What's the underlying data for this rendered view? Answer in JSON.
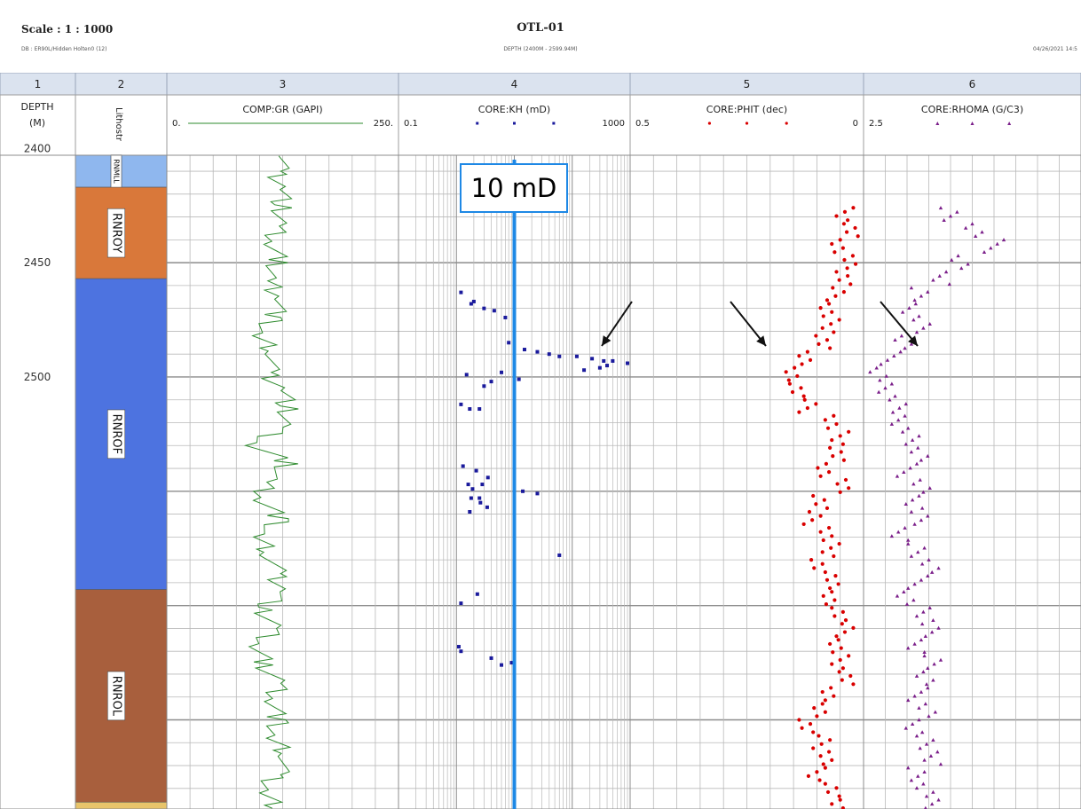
{
  "header": {
    "scale": "Scale : 1 : 1000",
    "database": "DB : ER90L/Hidden Holten0 (12)",
    "well": "OTL-01",
    "depth_range": "DEPTH (2400M - 2599.94M)",
    "date": "04/26/2021 14:5"
  },
  "tracks": [
    {
      "number": "1",
      "title": "DEPTH\n(M)"
    },
    {
      "number": "2",
      "title": "Lithostr"
    },
    {
      "number": "3",
      "title": "COMP:GR (GAPI)",
      "left": "0.",
      "right": "250."
    },
    {
      "number": "4",
      "title": "CORE:KH (mD)",
      "left": "0.1",
      "right": "1000"
    },
    {
      "number": "5",
      "title": "CORE:PHIT (dec)",
      "left": "0.5",
      "right": "0"
    },
    {
      "number": "6",
      "title": "CORE:RHOMA (G/C3)",
      "left": "2.5",
      "right": ""
    }
  ],
  "annotation": {
    "label": "10 mD",
    "value": 10,
    "color": "#1e88e5"
  },
  "colors": {
    "gr": "#2e8b2e",
    "kh": "#1a1a9c",
    "phit": "#d90000",
    "rhoma": "#7b1f8a",
    "grid": "#b9b9b9",
    "grid_major": "#8c8c8c"
  },
  "chart_data": {
    "type": "scatter",
    "ylabel": "DEPTH (M)",
    "depth_range": [
      2400,
      2599.94
    ],
    "depth_ticks": [
      2400,
      2450,
      2500
    ],
    "lithostratigraphy": [
      {
        "name": "RNMLL",
        "top": 2400,
        "base": 2417,
        "color": "#8fb7ee"
      },
      {
        "name": "RNROY",
        "top": 2417,
        "base": 2457,
        "color": "#d9783a"
      },
      {
        "name": "RNROF",
        "top": 2457,
        "base": 2593,
        "color": "#4d73e0"
      },
      {
        "name": "RNROL",
        "top": 2593,
        "base": 2686,
        "color": "#a85f3d"
      },
      {
        "name": "",
        "top": 2686,
        "base": 2700,
        "color": "#e8c46a"
      }
    ],
    "series": [
      {
        "name": "COMP:GR",
        "unit": "GAPI",
        "xlim": [
          0,
          250
        ],
        "scale": "linear",
        "style": "line",
        "depth": [
          2402,
          2410,
          2418,
          2426,
          2434,
          2442,
          2450,
          2458,
          2466,
          2474,
          2482,
          2490,
          2498,
          2506,
          2514,
          2522,
          2530,
          2538,
          2546,
          2554,
          2562,
          2570,
          2578,
          2586,
          2594,
          2602,
          2610,
          2618,
          2626,
          2634,
          2642,
          2650,
          2658,
          2666,
          2674,
          2682,
          2690,
          2698
        ],
        "values": [
          130,
          118,
          127,
          123,
          119,
          112,
          121,
          109,
          126,
          116,
          95,
          118,
          108,
          128,
          130,
          123,
          92,
          132,
          108,
          103,
          124,
          96,
          112,
          118,
          127,
          102,
          116,
          96,
          105,
          123,
          115,
          121,
          110,
          132,
          118,
          105,
          124,
          112
        ]
      },
      {
        "name": "CORE:KH",
        "unit": "mD",
        "xlim": [
          0.1,
          1000
        ],
        "scale": "log",
        "style": "points",
        "depth": [
          2463,
          2467,
          2468,
          2470,
          2471,
          2474,
          2485,
          2488,
          2489,
          2490,
          2491,
          2491,
          2492,
          2493,
          2493,
          2494,
          2495,
          2496,
          2497,
          2498,
          2499,
          2501,
          2502,
          2504,
          2512,
          2514,
          2514,
          2539,
          2541,
          2544,
          2547,
          2547,
          2549,
          2550,
          2551,
          2553,
          2553,
          2555,
          2557,
          2559,
          2578,
          2595,
          2599,
          2618,
          2620,
          2623,
          2625,
          2626
        ],
        "values": [
          1.2,
          2,
          1.8,
          3,
          4.5,
          7,
          8,
          15,
          25,
          40,
          60,
          120,
          220,
          350,
          500,
          900,
          400,
          300,
          160,
          6,
          1.5,
          12,
          4,
          3,
          1.2,
          2.5,
          1.7,
          1.3,
          2.2,
          3.5,
          1.6,
          2.8,
          1.9,
          14,
          25,
          2.5,
          1.8,
          2.6,
          3.4,
          1.7,
          60,
          2.3,
          1.2,
          1.1,
          1.2,
          4,
          9,
          6
        ]
      },
      {
        "name": "CORE:PHIT",
        "unit": "dec",
        "xlim": [
          0.5,
          0
        ],
        "scale": "linear",
        "style": "points",
        "depth": [
          2426,
          2433,
          2440,
          2447,
          2454,
          2461,
          2468,
          2475,
          2482,
          2489,
          2496,
          2503,
          2510,
          2517,
          2524,
          2531,
          2538,
          2545,
          2552,
          2559,
          2566,
          2573,
          2580,
          2587,
          2594,
          2601,
          2608,
          2615,
          2622,
          2629,
          2636,
          2643,
          2650,
          2657,
          2664,
          2671,
          2678,
          2685
        ],
        "values": [
          0.04,
          0.03,
          0.05,
          0.035,
          0.04,
          0.06,
          0.08,
          0.07,
          0.09,
          0.12,
          0.16,
          0.14,
          0.12,
          0.07,
          0.05,
          0.06,
          0.08,
          0.05,
          0.09,
          0.11,
          0.08,
          0.07,
          0.1,
          0.06,
          0.08,
          0.05,
          0.04,
          0.06,
          0.05,
          0.04,
          0.07,
          0.1,
          0.12,
          0.09,
          0.08,
          0.1,
          0.07,
          0.05
        ]
      },
      {
        "name": "CORE:RHOMA",
        "unit": "G/C3",
        "xlim": [
          2.5,
          2.9
        ],
        "scale": "linear",
        "style": "points",
        "depth": [
          2426,
          2433,
          2440,
          2447,
          2454,
          2461,
          2468,
          2475,
          2482,
          2489,
          2496,
          2503,
          2510,
          2517,
          2524,
          2531,
          2538,
          2545,
          2552,
          2559,
          2566,
          2573,
          2580,
          2587,
          2594,
          2601,
          2608,
          2615,
          2622,
          2629,
          2636,
          2643,
          2650,
          2657,
          2664,
          2671,
          2678,
          2685
        ],
        "values": [
          2.66,
          2.7,
          2.74,
          2.68,
          2.64,
          2.6,
          2.59,
          2.61,
          2.57,
          2.55,
          2.53,
          2.54,
          2.56,
          2.57,
          2.59,
          2.6,
          2.58,
          2.61,
          2.59,
          2.6,
          2.57,
          2.6,
          2.62,
          2.6,
          2.58,
          2.61,
          2.62,
          2.6,
          2.63,
          2.61,
          2.6,
          2.62,
          2.59,
          2.61,
          2.63,
          2.6,
          2.61,
          2.62
        ]
      }
    ]
  }
}
